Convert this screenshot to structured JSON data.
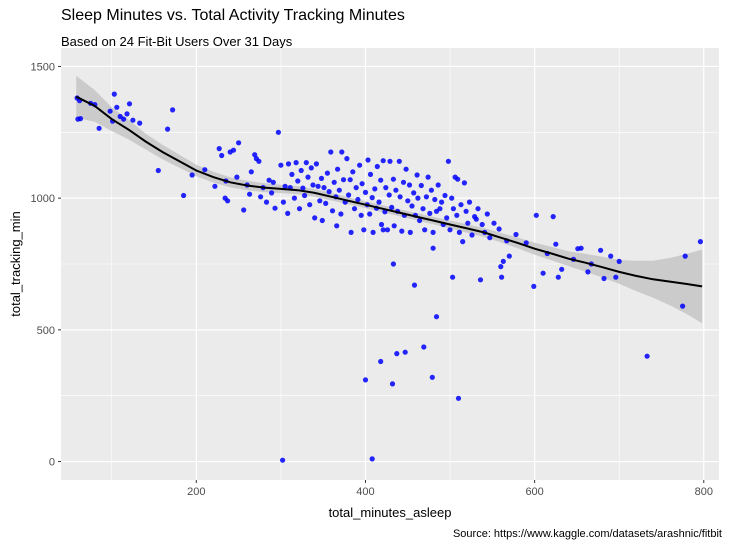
{
  "header": {
    "title": "Sleep Minutes vs. Total Activity Tracking Minutes",
    "subtitle": "Based on 24 Fit-Bit Users Over 31 Days",
    "caption": "Source: https://www.kaggle.com/datasets/arashnic/fitbit"
  },
  "colors": {
    "panel": "#ebebeb",
    "grid_major": "#ffffff",
    "points": "#0000ff",
    "smooth_line": "#000000",
    "ribbon": "#c0c0c0"
  },
  "chart_data": {
    "type": "scatter",
    "title": "Sleep Minutes vs. Total Activity Tracking Minutes",
    "subtitle": "Based on 24 Fit-Bit Users Over 31 Days",
    "xlabel": "total_minutes_asleep",
    "ylabel": "total_tracking_min",
    "xlim": [
      40,
      818
    ],
    "ylim": [
      -70,
      1570
    ],
    "xticks": [
      200,
      400,
      600,
      800
    ],
    "yticks": [
      0,
      500,
      1000,
      1500
    ],
    "grid": true,
    "legend": "none",
    "points": [
      [
        59,
        1380
      ],
      [
        60,
        1300
      ],
      [
        62,
        1370
      ],
      [
        63,
        1302
      ],
      [
        75,
        1360
      ],
      [
        80,
        1355
      ],
      [
        85,
        1265
      ],
      [
        98,
        1330
      ],
      [
        101,
        1292
      ],
      [
        103,
        1395
      ],
      [
        106,
        1345
      ],
      [
        110,
        1310
      ],
      [
        114,
        1300
      ],
      [
        118,
        1320
      ],
      [
        121,
        1358
      ],
      [
        125,
        1296
      ],
      [
        133,
        1285
      ],
      [
        155,
        1105
      ],
      [
        166,
        1262
      ],
      [
        172,
        1335
      ],
      [
        185,
        1010
      ],
      [
        195,
        1088
      ],
      [
        210,
        1108
      ],
      [
        222,
        1045
      ],
      [
        227,
        1188
      ],
      [
        230,
        1162
      ],
      [
        235,
        1065
      ],
      [
        234,
        1000
      ],
      [
        237,
        990
      ],
      [
        240,
        1175
      ],
      [
        244,
        1182
      ],
      [
        248,
        1080
      ],
      [
        250,
        1210
      ],
      [
        256,
        955
      ],
      [
        260,
        1050
      ],
      [
        263,
        1015
      ],
      [
        265,
        1100
      ],
      [
        269,
        1165
      ],
      [
        271,
        1150
      ],
      [
        274,
        1140
      ],
      [
        276,
        1005
      ],
      [
        279,
        1040
      ],
      [
        283,
        985
      ],
      [
        286,
        1068
      ],
      [
        289,
        1020
      ],
      [
        291,
        1060
      ],
      [
        293,
        962
      ],
      [
        297,
        1250
      ],
      [
        300,
        1125
      ],
      [
        303,
        985
      ],
      [
        305,
        1045
      ],
      [
        308,
        942
      ],
      [
        309,
        1130
      ],
      [
        311,
        1040
      ],
      [
        313,
        1090
      ],
      [
        316,
        1000
      ],
      [
        318,
        1135
      ],
      [
        320,
        1065
      ],
      [
        322,
        960
      ],
      [
        324,
        1105
      ],
      [
        326,
        1038
      ],
      [
        328,
        1010
      ],
      [
        330,
        1135
      ],
      [
        332,
        1080
      ],
      [
        334,
        975
      ],
      [
        336,
        1115
      ],
      [
        338,
        1050
      ],
      [
        340,
        925
      ],
      [
        342,
        1130
      ],
      [
        344,
        1045
      ],
      [
        346,
        990
      ],
      [
        348,
        1075
      ],
      [
        349,
        915
      ],
      [
        351,
        1040
      ],
      [
        353,
        980
      ],
      [
        355,
        1095
      ],
      [
        357,
        1025
      ],
      [
        359,
        1175
      ],
      [
        361,
        952
      ],
      [
        363,
        1060
      ],
      [
        365,
        1005
      ],
      [
        366,
        895
      ],
      [
        367,
        1110
      ],
      [
        369,
        1030
      ],
      [
        371,
        940
      ],
      [
        372,
        1175
      ],
      [
        374,
        1070
      ],
      [
        376,
        985
      ],
      [
        378,
        1150
      ],
      [
        380,
        1012
      ],
      [
        382,
        1070
      ],
      [
        383,
        870
      ],
      [
        385,
        1100
      ],
      [
        387,
        960
      ],
      [
        389,
        1040
      ],
      [
        391,
        995
      ],
      [
        393,
        1125
      ],
      [
        395,
        935
      ],
      [
        396,
        1055
      ],
      [
        398,
        880
      ],
      [
        400,
        1022
      ],
      [
        402,
        975
      ],
      [
        403,
        1145
      ],
      [
        405,
        940
      ],
      [
        406,
        1090
      ],
      [
        408,
        1002
      ],
      [
        409,
        870
      ],
      [
        411,
        1035
      ],
      [
        413,
        962
      ],
      [
        414,
        1120
      ],
      [
        416,
        985
      ],
      [
        418,
        1068
      ],
      [
        419,
        900
      ],
      [
        421,
        1142
      ],
      [
        423,
        948
      ],
      [
        424,
        1040
      ],
      [
        426,
        880
      ],
      [
        428,
        1012
      ],
      [
        429,
        1140
      ],
      [
        431,
        965
      ],
      [
        433,
        1072
      ],
      [
        434,
        895
      ],
      [
        436,
        1030
      ],
      [
        438,
        950
      ],
      [
        440,
        1140
      ],
      [
        441,
        1005
      ],
      [
        443,
        875
      ],
      [
        445,
        1060
      ],
      [
        446,
        935
      ],
      [
        448,
        1110
      ],
      [
        450,
        990
      ],
      [
        452,
        1050
      ],
      [
        453,
        870
      ],
      [
        455,
        970
      ],
      [
        457,
        1020
      ],
      [
        459,
        935
      ],
      [
        461,
        1088
      ],
      [
        462,
        1000
      ],
      [
        464,
        915
      ],
      [
        466,
        1048
      ],
      [
        468,
        960
      ],
      [
        470,
        880
      ],
      [
        472,
        1005
      ],
      [
        474,
        1080
      ],
      [
        476,
        942
      ],
      [
        478,
        1030
      ],
      [
        480,
        870
      ],
      [
        482,
        995
      ],
      [
        484,
        950
      ],
      [
        486,
        1050
      ],
      [
        488,
        960
      ],
      [
        490,
        985
      ],
      [
        492,
        900
      ],
      [
        494,
        1010
      ],
      [
        496,
        925
      ],
      [
        498,
        1140
      ],
      [
        500,
        880
      ],
      [
        502,
        1000
      ],
      [
        504,
        960
      ],
      [
        506,
        1080
      ],
      [
        508,
        935
      ],
      [
        509,
        1072
      ],
      [
        511,
        870
      ],
      [
        513,
        975
      ],
      [
        515,
        835
      ],
      [
        517,
        1058
      ],
      [
        519,
        950
      ],
      [
        521,
        905
      ],
      [
        523,
        985
      ],
      [
        526,
        860
      ],
      [
        529,
        930
      ],
      [
        531,
        920
      ],
      [
        533,
        960
      ],
      [
        536,
        690
      ],
      [
        538,
        900
      ],
      [
        541,
        870
      ],
      [
        544,
        940
      ],
      [
        547,
        850
      ],
      [
        552,
        905
      ],
      [
        558,
        883
      ],
      [
        561,
        700
      ],
      [
        563,
        760
      ],
      [
        567,
        838
      ],
      [
        570,
        780
      ],
      [
        578,
        862
      ],
      [
        590,
        830
      ],
      [
        599,
        665
      ],
      [
        602,
        935
      ],
      [
        610,
        715
      ],
      [
        615,
        790
      ],
      [
        622,
        930
      ],
      [
        625,
        825
      ],
      [
        628,
        700
      ],
      [
        632,
        730
      ],
      [
        646,
        768
      ],
      [
        651,
        808
      ],
      [
        655,
        810
      ],
      [
        663,
        720
      ],
      [
        667,
        750
      ],
      [
        678,
        802
      ],
      [
        682,
        695
      ],
      [
        690,
        780
      ],
      [
        696,
        700
      ],
      [
        700,
        760
      ],
      [
        733,
        400
      ],
      [
        775,
        590
      ],
      [
        778,
        780
      ],
      [
        796,
        835
      ],
      [
        302,
        5
      ],
      [
        408,
        10
      ],
      [
        400,
        310
      ],
      [
        418,
        380
      ],
      [
        432,
        295
      ],
      [
        437,
        410
      ],
      [
        447,
        415
      ],
      [
        469,
        435
      ],
      [
        479,
        320
      ],
      [
        484,
        550
      ],
      [
        510,
        240
      ],
      [
        458,
        670
      ],
      [
        503,
        700
      ],
      [
        560,
        740
      ],
      [
        480,
        810
      ],
      [
        421,
        880
      ],
      [
        433,
        750
      ]
    ],
    "smooth": [
      [
        58,
        1385
      ],
      [
        80,
        1350
      ],
      [
        100,
        1300
      ],
      [
        120,
        1260
      ],
      [
        140,
        1215
      ],
      [
        160,
        1175
      ],
      [
        180,
        1140
      ],
      [
        200,
        1105
      ],
      [
        220,
        1080
      ],
      [
        240,
        1060
      ],
      [
        260,
        1048
      ],
      [
        280,
        1040
      ],
      [
        300,
        1035
      ],
      [
        320,
        1030
      ],
      [
        340,
        1020
      ],
      [
        360,
        1005
      ],
      [
        380,
        990
      ],
      [
        400,
        975
      ],
      [
        420,
        960
      ],
      [
        440,
        945
      ],
      [
        460,
        930
      ],
      [
        480,
        915
      ],
      [
        500,
        900
      ],
      [
        520,
        885
      ],
      [
        540,
        870
      ],
      [
        560,
        850
      ],
      [
        580,
        830
      ],
      [
        600,
        808
      ],
      [
        620,
        790
      ],
      [
        640,
        770
      ],
      [
        660,
        755
      ],
      [
        680,
        738
      ],
      [
        700,
        720
      ],
      [
        720,
        705
      ],
      [
        740,
        692
      ],
      [
        760,
        683
      ],
      [
        780,
        674
      ],
      [
        798,
        665
      ]
    ],
    "ribbon_half_width": [
      [
        58,
        80
      ],
      [
        80,
        60
      ],
      [
        100,
        45
      ],
      [
        140,
        30
      ],
      [
        200,
        22
      ],
      [
        260,
        18
      ],
      [
        320,
        15
      ],
      [
        400,
        13
      ],
      [
        480,
        14
      ],
      [
        560,
        18
      ],
      [
        640,
        28
      ],
      [
        700,
        45
      ],
      [
        740,
        70
      ],
      [
        770,
        100
      ],
      [
        798,
        140
      ]
    ]
  }
}
